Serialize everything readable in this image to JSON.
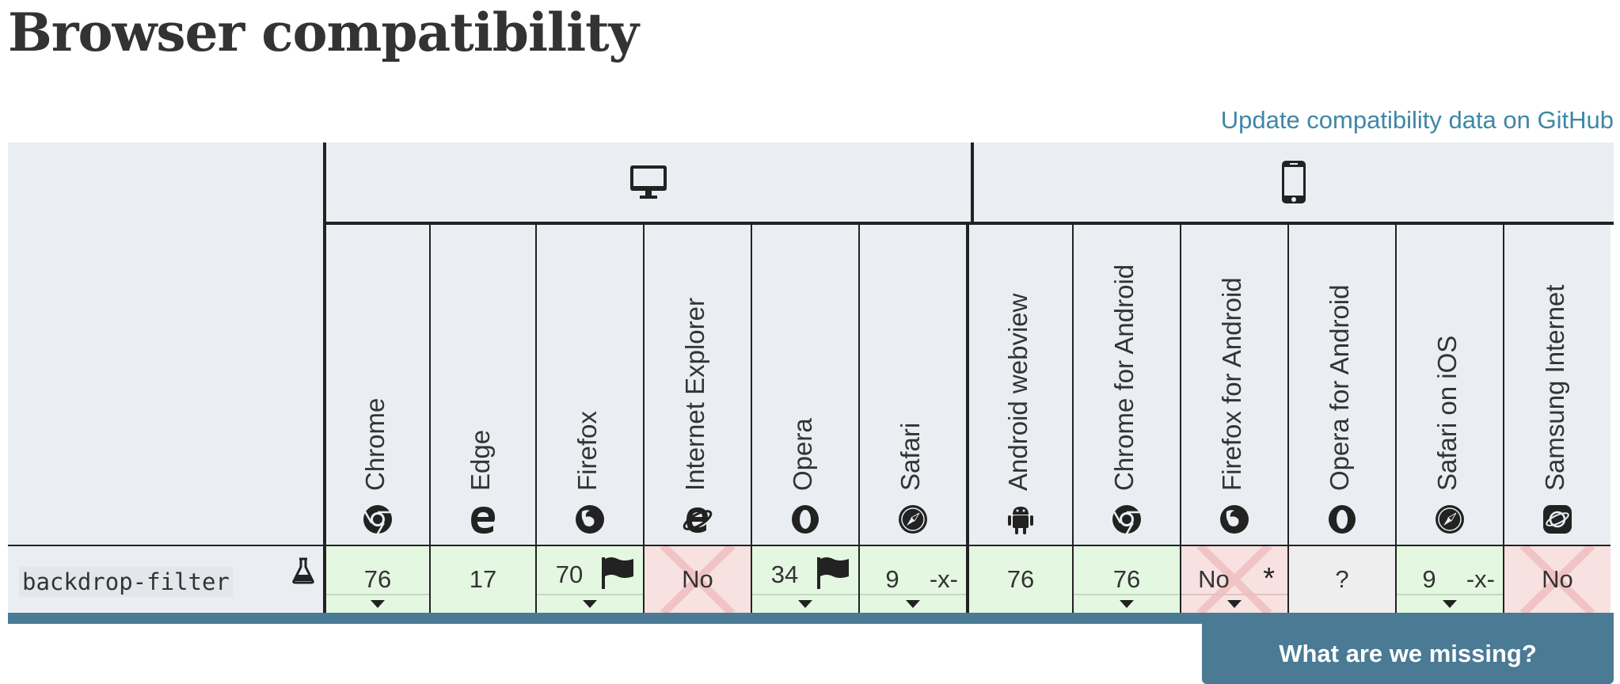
{
  "page": {
    "title": "Browser compatibility"
  },
  "github_link": {
    "label": "Update compatibility data on GitHub"
  },
  "platforms": [
    {
      "name": "desktop",
      "icon": "desktop-icon"
    },
    {
      "name": "mobile",
      "icon": "mobile-icon"
    }
  ],
  "browsers": [
    {
      "name": "Chrome",
      "icon": "chrome-icon"
    },
    {
      "name": "Edge",
      "icon": "edge-icon"
    },
    {
      "name": "Firefox",
      "icon": "firefox-icon"
    },
    {
      "name": "Internet Explorer",
      "icon": "ie-icon"
    },
    {
      "name": "Opera",
      "icon": "opera-icon"
    },
    {
      "name": "Safari",
      "icon": "safari-icon"
    },
    {
      "name": "Android webview",
      "icon": "android-icon"
    },
    {
      "name": "Chrome for Android",
      "icon": "chrome-icon"
    },
    {
      "name": "Firefox for Android",
      "icon": "firefox-icon"
    },
    {
      "name": "Opera for Android",
      "icon": "opera-icon"
    },
    {
      "name": "Safari on iOS",
      "icon": "safari-icon"
    },
    {
      "name": "Samsung Internet",
      "icon": "samsung-icon"
    }
  ],
  "feature": {
    "name": "backdrop-filter",
    "experimental_icon": "flask-icon",
    "support": [
      {
        "value": "76",
        "status": "yes",
        "toggle": true
      },
      {
        "value": "17",
        "status": "yes"
      },
      {
        "value": "70",
        "status": "yes",
        "flag": true,
        "toggle": true
      },
      {
        "value": "No",
        "status": "no"
      },
      {
        "value": "34",
        "status": "yes",
        "flag": true,
        "toggle": true
      },
      {
        "value": "9",
        "status": "yes",
        "prefix": "-x-",
        "toggle": true
      },
      {
        "value": "76",
        "status": "yes"
      },
      {
        "value": "76",
        "status": "yes",
        "toggle": true
      },
      {
        "value": "No",
        "status": "no",
        "note": "*",
        "toggle": true
      },
      {
        "value": "?",
        "status": "unknown"
      },
      {
        "value": "9",
        "status": "yes",
        "prefix": "-x-",
        "toggle": true
      },
      {
        "value": "No",
        "status": "no"
      }
    ]
  },
  "feedback_button": {
    "label": "What are we missing?"
  },
  "colors": {
    "link": "#3f87a6",
    "header_bg": "#eaeef2",
    "supported_bg": "#e4f8e1",
    "unsupported_bg": "#f8e1e1",
    "unknown_bg": "#eeeeee",
    "accent_bar": "#4a7a94"
  }
}
